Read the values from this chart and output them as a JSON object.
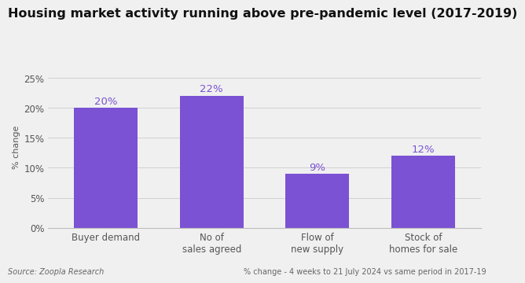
{
  "title": "Housing market activity running above pre-pandemic level (2017-2019)",
  "categories": [
    "Buyer demand",
    "No of\nsales agreed",
    "Flow of\nnew supply",
    "Stock of\nhomes for sale"
  ],
  "values": [
    20,
    22,
    9,
    12
  ],
  "bar_color": "#7B52D3",
  "label_color": "#7B52D3",
  "ylabel": "% change",
  "ylim": [
    0,
    27
  ],
  "yticks": [
    0,
    5,
    10,
    15,
    20,
    25
  ],
  "ytick_labels": [
    "0%",
    "5%",
    "10%",
    "15%",
    "20%",
    "25%"
  ],
  "value_labels": [
    "20%",
    "22%",
    "9%",
    "12%"
  ],
  "background_color": "#f0f0f0",
  "footer_left": "Source: Zoopla Research",
  "footer_right": "% change - 4 weeks to 21 July 2024 vs same period in 2017-19",
  "title_fontsize": 11.5,
  "axis_label_fontsize": 8,
  "tick_label_fontsize": 8.5,
  "value_label_fontsize": 9.5,
  "footer_fontsize": 7
}
